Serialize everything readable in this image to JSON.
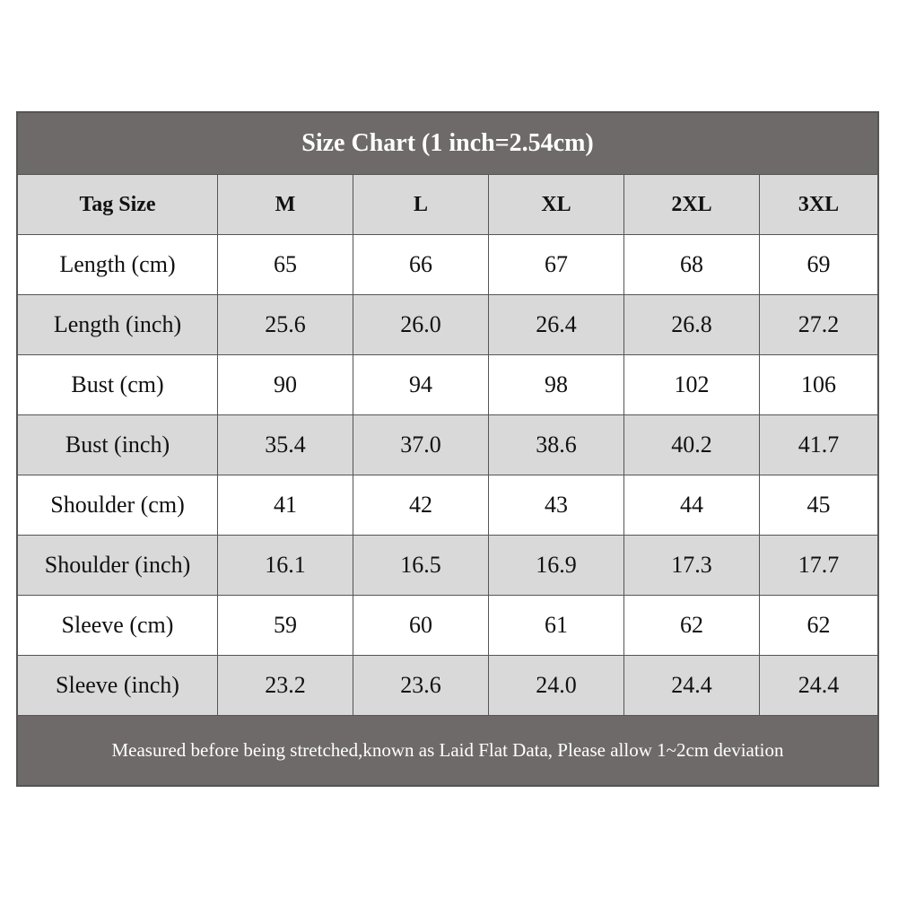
{
  "title": "Size Chart (1 inch=2.54cm)",
  "table": {
    "header": [
      "Tag Size",
      "M",
      "L",
      "XL",
      "2XL",
      "3XL"
    ],
    "rows": [
      [
        "Length (cm)",
        "65",
        "66",
        "67",
        "68",
        "69"
      ],
      [
        "Length (inch)",
        "25.6",
        "26.0",
        "26.4",
        "26.8",
        "27.2"
      ],
      [
        "Bust (cm)",
        "90",
        "94",
        "98",
        "102",
        "106"
      ],
      [
        "Bust (inch)",
        "35.4",
        "37.0",
        "38.6",
        "40.2",
        "41.7"
      ],
      [
        "Shoulder (cm)",
        "41",
        "42",
        "43",
        "44",
        "45"
      ],
      [
        "Shoulder (inch)",
        "16.1",
        "16.5",
        "16.9",
        "17.3",
        "17.7"
      ],
      [
        "Sleeve (cm)",
        "59",
        "60",
        "61",
        "62",
        "62"
      ],
      [
        "Sleeve (inch)",
        "23.2",
        "23.6",
        "24.0",
        "24.4",
        "24.4"
      ]
    ]
  },
  "footer": "Measured before being stretched,known as Laid Flat Data, Please allow 1~2cm deviation"
}
